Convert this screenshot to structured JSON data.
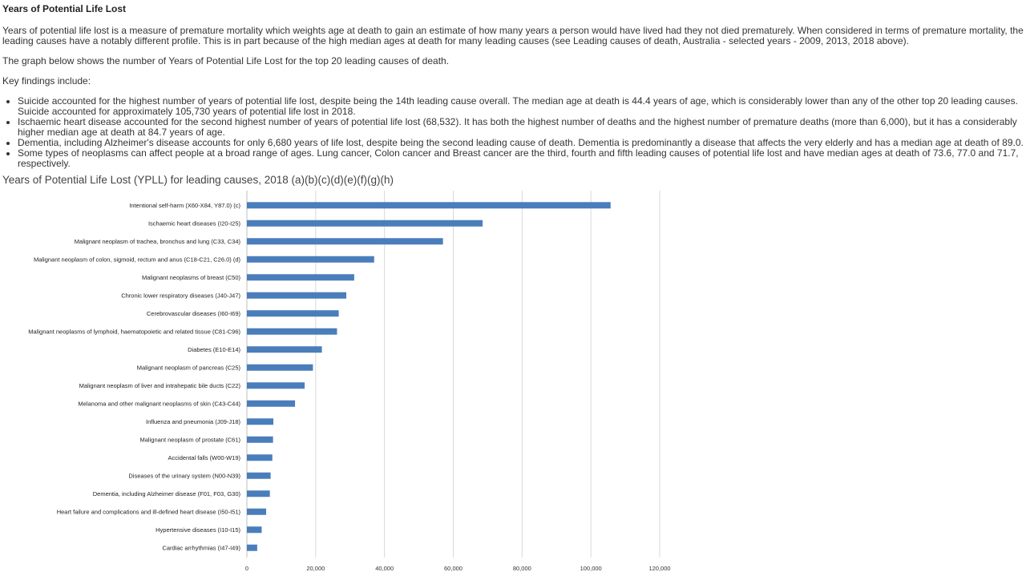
{
  "section": {
    "title": "Years of Potential Life Lost",
    "paragraphs": [
      "Years of potential life lost is a measure of premature mortality which weights age at death to gain an estimate of how many years a person would have lived had they not died prematurely. When considered in terms of premature mortality, the leading causes have a notably different profile. This is in part because of the high median ages at death for many leading causes (see Leading causes of death, Australia - selected years - 2009, 2013, 2018 above).",
      "The graph below shows the number of Years of Potential Life Lost for the top 20 leading causes of death.",
      "Key findings include:"
    ],
    "findings": [
      "Suicide accounted for the highest number of years of potential life lost, despite being the 14th leading cause overall. The median age at death is 44.4 years of age, which is considerably lower than any of the other top 20 leading causes. Suicide accounted for approximately 105,730 years of potential life lost in 2018.",
      "Ischaemic heart disease accounted for the second highest number of years of potential life lost (68,532). It has both the highest number of deaths and the highest number of premature deaths (more than 6,000), but it has a considerably higher median age at death at 84.7 years of age.",
      "Dementia, including Alzheimer's disease accounts for only 6,680 years of life lost, despite being the second leading cause of death. Dementia is predominantly a disease that affects the very elderly and has a median age at death of 89.0.",
      "Some types of neoplasms can affect people at a broad range of ages. Lung cancer, Colon cancer and Breast cancer are the third, fourth and fifth leading causes of potential life lost and have median ages at death of 73.6, 77.0 and 71.7, respectively."
    ]
  },
  "chart_data": {
    "type": "bar",
    "orientation": "horizontal",
    "title": "Years of Potential Life Lost (YPLL) for leading causes, 2018 (a)(b)(c)(d)(e)(f)(g)(h)",
    "categories": [
      "Intentional self-harm (X60-X84, Y87.0) (c)",
      "Ischaemic heart diseases (I20-I25)",
      "Malignant neoplasm of trachea, bronchus and lung (C33, C34)",
      "Malignant neoplasm of colon, sigmoid, rectum and anus (C18-C21, C26.0) (d)",
      "Malignant neoplasms of breast (C50)",
      "Chronic lower respiratory diseases (J40-J47)",
      "Cerebrovascular diseases (I60-I69)",
      "Malignant neoplasms of lymphoid, haematopoietic and related tissue (C81-C96)",
      "Diabetes (E10-E14)",
      "Malignant neoplasm of pancreas (C25)",
      "Malignant neoplasm of liver and intrahepatic bile ducts (C22)",
      "Melanoma and other malignant neoplasms of skin  (C43-C44)",
      "Influenza and pneumonia (J09-J18)",
      "Malignant neoplasm of prostate (C61)",
      "Accidental falls (W00-W19)",
      "Diseases of the urinary system (N00-N39)",
      "Dementia, including Alzheimer disease (F01, F03, G30)",
      "Heart failure and complications and ill-defined heart disease (I50-I51)",
      "Hypertensive diseases (I10-I15)",
      "Cardiac arrhythmias (I47-I49)"
    ],
    "values": [
      105730,
      68532,
      57000,
      37000,
      31200,
      28900,
      26700,
      26200,
      21800,
      19200,
      16800,
      14000,
      7700,
      7600,
      7400,
      6900,
      6680,
      5600,
      4300,
      3000
    ],
    "x_ticks": [
      "0",
      "20,000",
      "40,000",
      "60,000",
      "80,000",
      "100,000",
      "120,000"
    ],
    "xlim": [
      0,
      120000
    ],
    "grid": "vertical",
    "bar_color": "#4a7ebb"
  }
}
